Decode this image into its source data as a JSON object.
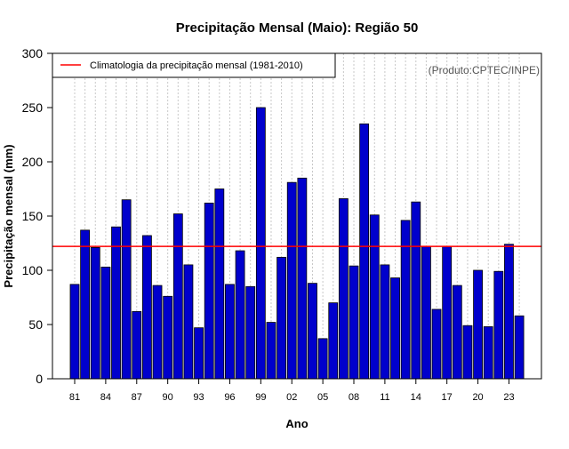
{
  "chart_data": {
    "type": "bar",
    "title": "Precipitação Mensal (Maio): Região 50",
    "xlabel": "Ano",
    "ylabel": "Precipitação mensal (mm)",
    "ylim": [
      0,
      300
    ],
    "yticks": [
      0,
      50,
      100,
      150,
      200,
      250,
      300
    ],
    "years": [
      1981,
      1982,
      1983,
      1984,
      1985,
      1986,
      1987,
      1988,
      1989,
      1990,
      1991,
      1992,
      1993,
      1994,
      1995,
      1996,
      1997,
      1998,
      1999,
      2000,
      2001,
      2002,
      2003,
      2004,
      2005,
      2006,
      2007,
      2008,
      2009,
      2010,
      2011,
      2012,
      2013,
      2014,
      2015,
      2016,
      2017,
      2018,
      2019,
      2020,
      2021,
      2022,
      2023,
      2024
    ],
    "values": [
      87,
      137,
      121,
      103,
      140,
      165,
      62,
      132,
      86,
      76,
      152,
      105,
      47,
      162,
      175,
      87,
      118,
      85,
      250,
      52,
      112,
      181,
      185,
      88,
      37,
      70,
      166,
      104,
      235,
      151,
      105,
      93,
      146,
      163,
      122,
      64,
      122,
      86,
      49,
      100,
      48,
      99,
      124,
      58
    ],
    "xtick_labels": [
      "81",
      "84",
      "87",
      "90",
      "93",
      "96",
      "99",
      "02",
      "05",
      "08",
      "11",
      "14",
      "17",
      "20",
      "23"
    ],
    "climatology": {
      "value": 122,
      "label": "Climatologia da precipitação mensal (1981-2010)",
      "color": "#ff0000"
    },
    "bar_color": "#0000cc",
    "grid": true,
    "legend_position": "top-left",
    "credit": "(Produto:CPTEC/INPE)"
  }
}
